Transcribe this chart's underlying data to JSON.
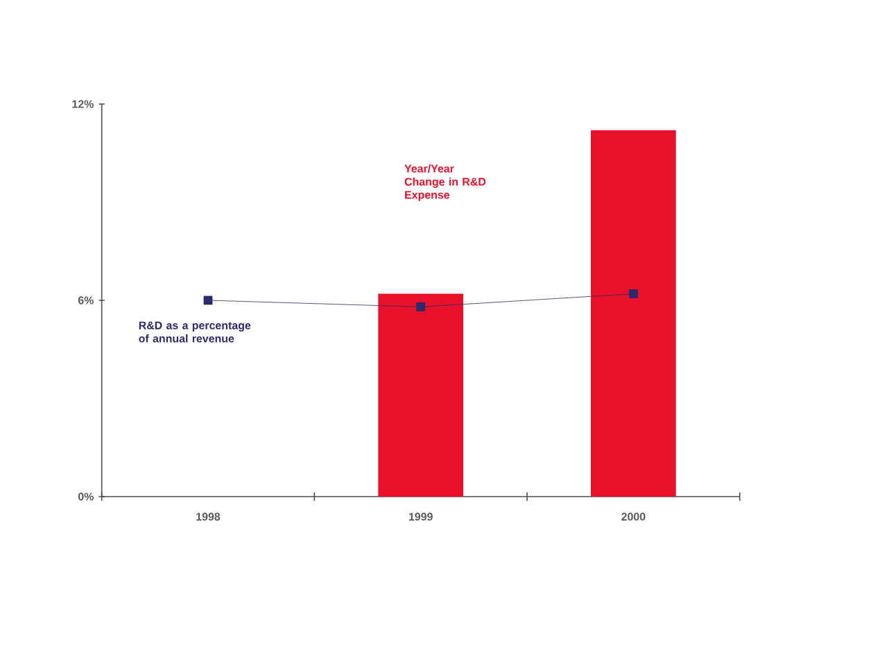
{
  "chart_data": {
    "type": "bar",
    "categories": [
      "1998",
      "1999",
      "2000"
    ],
    "series": [
      {
        "name": "Year/Year Change in R&D Expense",
        "color": "#e8102a",
        "values": [
          null,
          6.2,
          11.2
        ]
      },
      {
        "name": "R&D as a percentage of annual revenue",
        "type": "line",
        "color": "#2b2a6b",
        "values": [
          6.0,
          5.8,
          6.2
        ]
      }
    ],
    "marker": "square",
    "line_style": "solid",
    "ylim": [
      0,
      12
    ],
    "yticks": [
      {
        "value": 0,
        "label": "0%"
      },
      {
        "value": 6,
        "label": "6%"
      },
      {
        "value": 12,
        "label": "12%"
      }
    ]
  }
}
